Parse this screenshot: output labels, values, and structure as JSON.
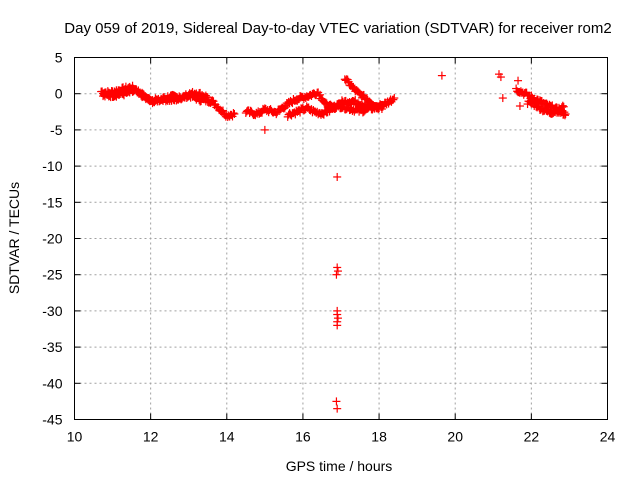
{
  "chart_data": {
    "type": "scatter",
    "title": "Day 059 of 2019, Sidereal Day-to-day VTEC variation (SDTVAR) for receiver rom2",
    "xlabel": "GPS time / hours",
    "ylabel": "SDTVAR / TECUs",
    "xlim": [
      10,
      24
    ],
    "ylim": [
      -45,
      5
    ],
    "xticks": [
      10,
      12,
      14,
      16,
      18,
      20,
      22,
      24
    ],
    "yticks": [
      5,
      0,
      -5,
      -10,
      -15,
      -20,
      -25,
      -30,
      -35,
      -40,
      -45
    ],
    "grid": true,
    "marker": "+",
    "color": "#ff0000",
    "segments": [
      {
        "x": [
          10.7,
          10.9,
          11.2,
          11.5,
          11.7,
          11.9,
          12.2,
          12.5,
          12.8,
          13.0,
          13.3,
          13.6,
          13.8,
          14.0,
          14.2
        ],
        "y": [
          0.3,
          0.1,
          0.5,
          0.9,
          0.2,
          -0.7,
          -1.0,
          -0.4,
          -0.6,
          -0.2,
          -0.8,
          -1.0,
          -2.0,
          -3.0,
          -2.8
        ]
      },
      {
        "x": [
          10.75,
          11.0,
          11.3,
          11.6,
          11.8,
          12.0,
          12.3,
          12.6,
          13.0,
          13.2,
          13.5
        ],
        "y": [
          -0.3,
          -0.2,
          0.0,
          0.4,
          -0.3,
          -1.1,
          -0.7,
          -0.9,
          -0.1,
          0.1,
          -0.5
        ]
      },
      {
        "x": [
          14.5,
          14.8,
          15.0,
          15.3,
          15.5,
          15.8,
          16.0,
          16.2,
          16.4,
          16.6,
          16.8,
          17.0,
          17.3,
          17.6,
          17.9,
          18.2,
          18.4
        ],
        "y": [
          -2.5,
          -2.8,
          -2.2,
          -2.6,
          -1.8,
          -0.8,
          -0.5,
          -0.2,
          0.2,
          -1.5,
          -2.0,
          -1.2,
          -1.0,
          -1.6,
          -1.9,
          -1.3,
          -0.6
        ]
      },
      {
        "x": [
          15.6,
          15.9,
          16.1,
          16.3,
          16.5,
          16.7,
          16.9,
          17.2,
          17.5,
          17.8,
          18.1
        ],
        "y": [
          -2.9,
          -2.4,
          -2.0,
          -2.5,
          -2.7,
          -2.3,
          -1.6,
          -2.0,
          -2.4,
          -2.0,
          -1.8
        ]
      },
      {
        "x": [
          17.1,
          17.25,
          17.4,
          17.55,
          17.7,
          17.85,
          18.0
        ],
        "y": [
          2.1,
          1.2,
          0.3,
          -0.3,
          -0.8,
          -1.4,
          -2.0
        ]
      },
      {
        "x": [
          21.6,
          21.8,
          22.0,
          22.2,
          22.4,
          22.6,
          22.8,
          22.9
        ],
        "y": [
          0.6,
          0.1,
          -0.5,
          -1.0,
          -1.6,
          -2.0,
          -2.6,
          -2.8
        ]
      },
      {
        "x": [
          21.9,
          22.1,
          22.3,
          22.5,
          22.7,
          22.85
        ],
        "y": [
          -1.2,
          -1.5,
          -2.2,
          -2.6,
          -2.3,
          -1.8
        ]
      }
    ],
    "outliers": {
      "x": [
        15.0,
        16.9,
        16.9,
        16.92,
        16.88,
        16.9,
        16.9,
        16.92,
        16.9,
        16.9,
        16.88,
        16.9,
        19.65,
        21.15,
        21.2,
        21.25,
        21.65,
        21.7
      ],
      "y": [
        -5.0,
        -11.5,
        -24.0,
        -24.5,
        -25.0,
        -30.0,
        -30.5,
        -31.0,
        -31.5,
        -32.0,
        -42.5,
        -43.5,
        2.5,
        2.7,
        2.3,
        -0.6,
        1.8,
        -1.7
      ]
    }
  }
}
